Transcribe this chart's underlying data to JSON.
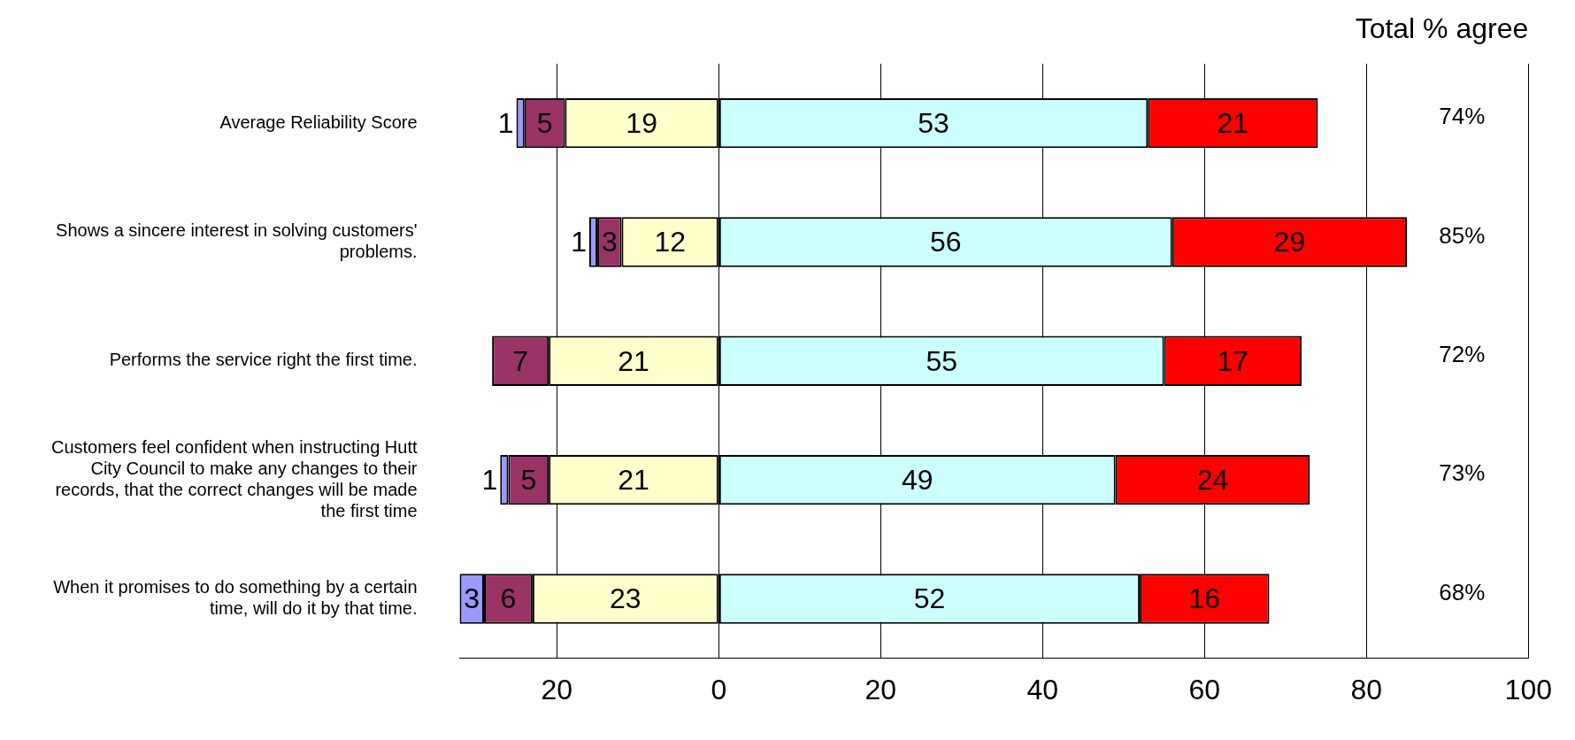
{
  "chart_data": {
    "type": "bar",
    "orientation": "horizontal",
    "categories": [
      "Average Reliability Score",
      "Shows a sincere interest in solving customers' problems.",
      "Performs the service right the first time.",
      "Customers feel confident when instructing Hutt City Council to make any changes to their records, that the correct changes will be made the first time",
      "When it promises to do something by a certain time, will do it by that time."
    ],
    "series": [
      {
        "color": "#ffffcc",
        "base": [
          -19,
          -12,
          -21,
          -21,
          -23
        ],
        "values": [
          19,
          12,
          21,
          21,
          23
        ],
        "value_labels": [
          "19",
          "12",
          "21",
          "21",
          "23"
        ]
      },
      {
        "color": "#993366",
        "base": [
          -24,
          -15,
          -28,
          -26,
          -29
        ],
        "values": [
          5,
          3,
          7,
          5,
          6
        ],
        "value_labels": [
          "5",
          "3",
          "7",
          "5",
          "6"
        ]
      },
      {
        "color": "#9999ff",
        "base": [
          -25,
          -16,
          null,
          -27,
          -32
        ],
        "values": [
          1,
          1,
          null,
          1,
          3
        ],
        "value_labels": [
          "1",
          "1",
          null,
          "1",
          "3"
        ]
      },
      {
        "color": "#ccffff",
        "base": [
          0,
          0,
          0,
          0,
          0
        ],
        "values": [
          53,
          56,
          55,
          49,
          52
        ],
        "value_labels": [
          "53",
          "56",
          "55",
          "49",
          "52"
        ]
      },
      {
        "color": "#ff0000",
        "base": [
          53,
          56,
          55,
          49,
          52
        ],
        "values": [
          21,
          29,
          17,
          24,
          16
        ],
        "value_labels": [
          "21",
          "29",
          "17",
          "24",
          "16"
        ]
      }
    ],
    "xlim": [
      -32,
      100
    ],
    "xticks": [
      {
        "value": -20,
        "label": "20"
      },
      0,
      20,
      40,
      60,
      80,
      100
    ],
    "grid": "x",
    "legend": false,
    "annotations": [
      "Total % agree",
      "74%",
      "85%",
      "72%",
      "73%",
      "68%"
    ]
  }
}
